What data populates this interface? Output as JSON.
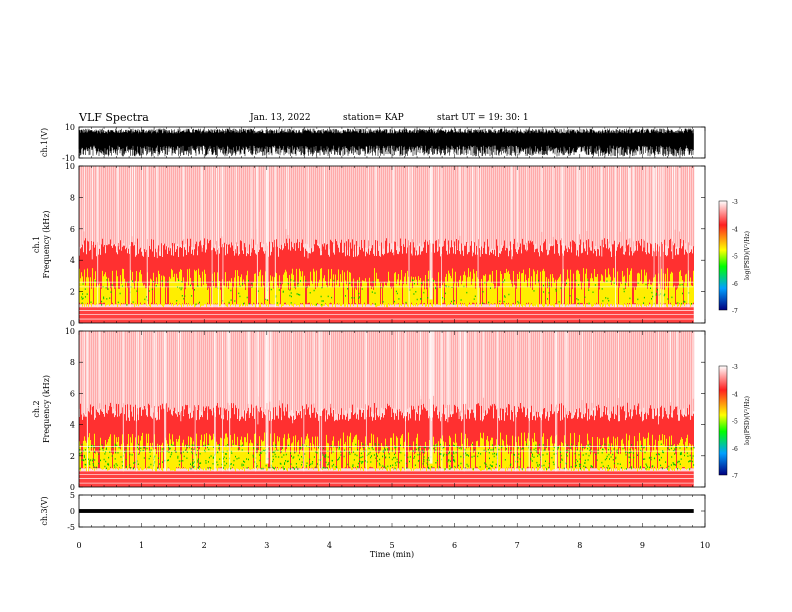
{
  "header": {
    "title": "VLF Spectra",
    "date": "Jan. 13, 2022",
    "station": "station= KAP",
    "start": "start  UT =   19: 30: 1"
  },
  "colors": {
    "spec_low": "#ff3030",
    "spec_mid": "#ffff00",
    "spec_green": "#00c000",
    "trace": "#000000"
  },
  "chart_data": [
    {
      "type": "line",
      "name": "ch1-waveform",
      "ylabel": "ch.1(V)",
      "ylim": [
        -10,
        10
      ],
      "y_ticks": [
        "10",
        "-10"
      ],
      "xlim": [
        0,
        10
      ]
    },
    {
      "type": "heatmap",
      "name": "ch1-spectrogram",
      "ylabel": "ch.1\nFrequency (kHz)",
      "ylim": [
        0,
        10
      ],
      "y_ticks": [
        "0",
        "2",
        "4",
        "6",
        "8",
        "10"
      ],
      "xlim": [
        0,
        10
      ],
      "colorbar": {
        "label": "log(PSD)(V²/Hz)",
        "range": [
          -7,
          -3
        ],
        "ticks": [
          "-3",
          "-4",
          "-5",
          "-6",
          "-7"
        ]
      }
    },
    {
      "type": "heatmap",
      "name": "ch2-spectrogram",
      "ylabel": "ch.2\nFrequency (kHz)",
      "ylim": [
        0,
        10
      ],
      "y_ticks": [
        "0",
        "2",
        "4",
        "6",
        "8",
        "10"
      ],
      "xlim": [
        0,
        10
      ],
      "colorbar": {
        "label": "log(PSD)(V²/Hz)",
        "range": [
          -7,
          -3
        ],
        "ticks": [
          "-3",
          "-4",
          "-5",
          "-6",
          "-7"
        ]
      }
    },
    {
      "type": "line",
      "name": "ch3-waveform",
      "ylabel": "ch.3(V)",
      "ylim": [
        -5,
        5
      ],
      "y_ticks": [
        "5",
        "0",
        "-5"
      ],
      "xlim": [
        0,
        10
      ],
      "x_ticks": [
        "0",
        "1",
        "2",
        "3",
        "4",
        "5",
        "6",
        "7",
        "8",
        "9",
        "10"
      ],
      "xlabel": "Time (min)"
    }
  ]
}
